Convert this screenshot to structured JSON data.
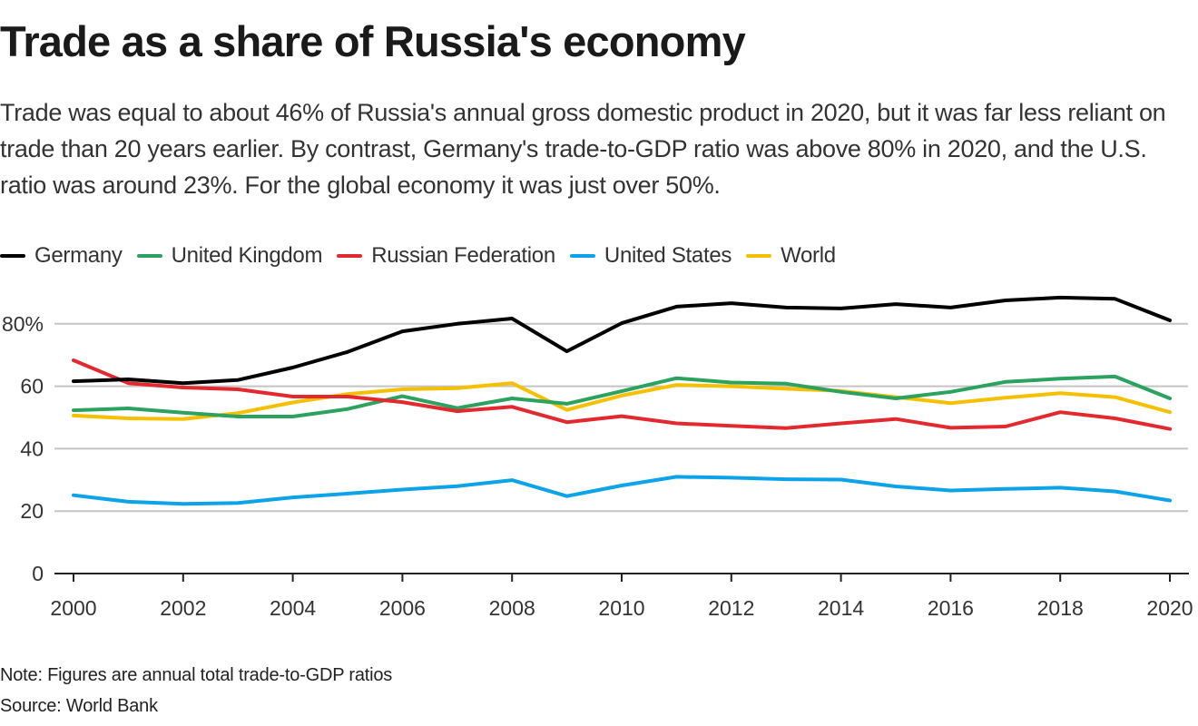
{
  "header": {
    "title": "Trade as a share of Russia's economy",
    "subtitle": "Trade was equal to about 46% of Russia's annual gross domestic product in 2020, but it was far less reliant on trade than 20 years earlier. By contrast, Germany's trade-to-GDP ratio was above 80% in 2020, and the U.S. ratio was around 23%. For the global economy it was just over 50%."
  },
  "footer": {
    "note": "Note: Figures are annual total trade-to-GDP ratios",
    "source": "Source: World Bank"
  },
  "chart_data": {
    "type": "line",
    "title": "Trade as a share of Russia's economy",
    "xlabel": "",
    "ylabel": "",
    "x": [
      2000,
      2001,
      2002,
      2003,
      2004,
      2005,
      2006,
      2007,
      2008,
      2009,
      2010,
      2011,
      2012,
      2013,
      2014,
      2015,
      2016,
      2017,
      2018,
      2019,
      2020
    ],
    "x_ticks": [
      "2000",
      "2002",
      "2004",
      "2006",
      "2008",
      "2010",
      "2012",
      "2014",
      "2016",
      "2018",
      "2020"
    ],
    "y_ticks": [
      {
        "value": 0,
        "label": "0"
      },
      {
        "value": 20,
        "label": "20"
      },
      {
        "value": 40,
        "label": "40"
      },
      {
        "value": 60,
        "label": "60"
      },
      {
        "value": 80,
        "label": "80%"
      }
    ],
    "ylim": [
      0,
      90
    ],
    "xlim": [
      2000,
      2020
    ],
    "grid": true,
    "legend_position": "top-left",
    "series": [
      {
        "name": "Germany",
        "color": "#000000",
        "values": [
          61.6,
          62.2,
          61.0,
          62.0,
          66.0,
          71.0,
          77.6,
          80.0,
          81.7,
          71.2,
          80.2,
          85.5,
          86.6,
          85.2,
          84.9,
          86.3,
          85.2,
          87.5,
          88.4,
          88.0,
          81.1
        ]
      },
      {
        "name": "United Kingdom",
        "color": "#2ca25f",
        "values": [
          52.3,
          52.9,
          51.5,
          50.3,
          50.3,
          52.7,
          56.8,
          53.0,
          56.1,
          54.4,
          58.4,
          62.6,
          61.2,
          60.8,
          58.2,
          56.1,
          58.2,
          61.4,
          62.4,
          63.1,
          56.1
        ]
      },
      {
        "name": "Russian Federation",
        "color": "#e3292e",
        "values": [
          68.3,
          61.0,
          59.6,
          59.0,
          56.7,
          56.7,
          54.9,
          52.0,
          53.4,
          48.5,
          50.4,
          48.1,
          47.3,
          46.6,
          48.1,
          49.5,
          46.7,
          47.1,
          51.7,
          49.7,
          46.3
        ]
      },
      {
        "name": "United States",
        "color": "#0da3e8",
        "values": [
          25.1,
          23.0,
          22.3,
          22.6,
          24.4,
          25.6,
          26.9,
          28.0,
          29.9,
          24.8,
          28.2,
          31.0,
          30.7,
          30.2,
          30.1,
          27.9,
          26.6,
          27.1,
          27.5,
          26.3,
          23.4
        ]
      },
      {
        "name": "World",
        "color": "#f5c000",
        "values": [
          50.6,
          49.7,
          49.5,
          51.4,
          54.8,
          57.5,
          59.0,
          59.4,
          61.0,
          52.4,
          57.0,
          60.4,
          60.0,
          59.2,
          58.5,
          56.5,
          54.6,
          56.3,
          57.8,
          56.5,
          51.7
        ]
      }
    ]
  }
}
